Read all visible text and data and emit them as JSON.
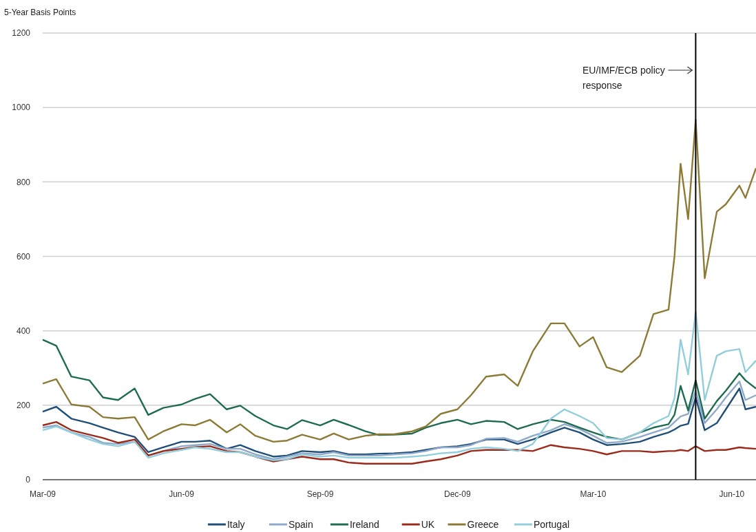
{
  "chart_data": {
    "type": "line",
    "ylabel": "5-Year Basis Points",
    "x": [
      "2009-03-01",
      "2009-03-10",
      "2009-03-20",
      "2009-04-01",
      "2009-04-10",
      "2009-04-20",
      "2009-05-01",
      "2009-05-10",
      "2009-05-20",
      "2009-06-01",
      "2009-06-10",
      "2009-06-20",
      "2009-07-01",
      "2009-07-10",
      "2009-07-20",
      "2009-08-01",
      "2009-08-10",
      "2009-08-20",
      "2009-09-01",
      "2009-09-10",
      "2009-09-20",
      "2009-10-01",
      "2009-10-10",
      "2009-10-20",
      "2009-11-01",
      "2009-11-10",
      "2009-11-20",
      "2009-12-01",
      "2009-12-10",
      "2009-12-20",
      "2010-01-01",
      "2010-01-10",
      "2010-01-20",
      "2010-02-01",
      "2010-02-10",
      "2010-02-20",
      "2010-03-01",
      "2010-03-10",
      "2010-03-20",
      "2010-04-01",
      "2010-04-10",
      "2010-04-20",
      "2010-04-24",
      "2010-04-28",
      "2010-05-03",
      "2010-05-08",
      "2010-05-14",
      "2010-05-22",
      "2010-05-28",
      "2010-06-06",
      "2010-06-10",
      "2010-06-17"
    ],
    "series": [
      {
        "name": "Italy",
        "color": "#1f4e79",
        "values": [
          183,
          196,
          164,
          152,
          140,
          127,
          115,
          74,
          87,
          102,
          102,
          105,
          83,
          93,
          77,
          62,
          65,
          77,
          74,
          77,
          68,
          68,
          70,
          71,
          74,
          80,
          87,
          90,
          96,
          108,
          108,
          96,
          108,
          127,
          140,
          127,
          108,
          93,
          96,
          102,
          115,
          127,
          135,
          145,
          150,
          221,
          133,
          152,
          189,
          245,
          189,
          196
        ]
      },
      {
        "name": "Spain",
        "color": "#8ea9c9",
        "values": [
          140,
          146,
          127,
          115,
          99,
          96,
          102,
          65,
          77,
          90,
          93,
          96,
          83,
          83,
          68,
          55,
          62,
          71,
          68,
          74,
          65,
          65,
          65,
          68,
          71,
          77,
          87,
          87,
          93,
          110,
          112,
          102,
          118,
          133,
          149,
          136,
          118,
          99,
          102,
          115,
          127,
          140,
          155,
          170,
          177,
          239,
          152,
          189,
          221,
          264,
          214,
          227
        ]
      },
      {
        "name": "Ireland",
        "color": "#1e6b52",
        "values": [
          376,
          360,
          277,
          267,
          221,
          214,
          245,
          174,
          193,
          202,
          217,
          230,
          189,
          199,
          171,
          146,
          136,
          160,
          146,
          161,
          147,
          130,
          120,
          121,
          124,
          140,
          152,
          161,
          149,
          158,
          155,
          136,
          149,
          161,
          155,
          140,
          127,
          115,
          108,
          127,
          140,
          149,
          175,
          252,
          186,
          267,
          164,
          211,
          239,
          286,
          267,
          245
        ]
      },
      {
        "name": "UK",
        "color": "#9b2a1a",
        "values": [
          146,
          155,
          133,
          121,
          112,
          99,
          108,
          65,
          77,
          83,
          88,
          90,
          77,
          74,
          62,
          49,
          55,
          62,
          55,
          55,
          46,
          43,
          43,
          43,
          43,
          49,
          55,
          65,
          77,
          80,
          80,
          80,
          77,
          93,
          87,
          83,
          77,
          68,
          77,
          77,
          74,
          77,
          77,
          80,
          77,
          90,
          77,
          80,
          80,
          87,
          85,
          83
        ]
      },
      {
        "name": "Greece",
        "color": "#8c7a35",
        "values": [
          258,
          270,
          202,
          196,
          168,
          164,
          168,
          108,
          130,
          149,
          146,
          161,
          127,
          149,
          118,
          102,
          105,
          121,
          108,
          124,
          108,
          118,
          122,
          122,
          130,
          143,
          177,
          189,
          227,
          277,
          283,
          252,
          345,
          420,
          420,
          358,
          383,
          302,
          289,
          333,
          445,
          457,
          602,
          849,
          700,
          967,
          541,
          720,
          740,
          790,
          757,
          837
        ]
      },
      {
        "name": "Portugal",
        "color": "#92cddc",
        "values": [
          133,
          143,
          127,
          108,
          96,
          90,
          102,
          59,
          71,
          80,
          87,
          83,
          74,
          74,
          62,
          52,
          55,
          68,
          62,
          65,
          59,
          59,
          59,
          59,
          62,
          65,
          71,
          74,
          83,
          87,
          83,
          77,
          96,
          164,
          189,
          171,
          152,
          112,
          108,
          127,
          152,
          171,
          220,
          376,
          283,
          451,
          214,
          333,
          345,
          351,
          289,
          320
        ]
      }
    ],
    "xlim": [
      "2009-03-01",
      "2010-06-17"
    ],
    "xticks": [
      {
        "value": "2009-03-01",
        "label": "Mar-09"
      },
      {
        "value": "2009-06-01",
        "label": "Jun-09"
      },
      {
        "value": "2009-09-01",
        "label": "Sep-09"
      },
      {
        "value": "2009-12-01",
        "label": "Dec-09"
      },
      {
        "value": "2010-03-01",
        "label": "Mar-10"
      },
      {
        "value": "2010-06-01",
        "label": "Jun-10"
      }
    ],
    "ylim": [
      0,
      1200
    ],
    "yticks": [
      0,
      200,
      400,
      600,
      800,
      1000,
      1200
    ],
    "grid": "y",
    "legend": "bottom",
    "ref_lines": [
      {
        "axis": "x",
        "value": "2010-05-08",
        "label": "EU/IMF/ECB policy response",
        "color": "#000000"
      }
    ]
  }
}
